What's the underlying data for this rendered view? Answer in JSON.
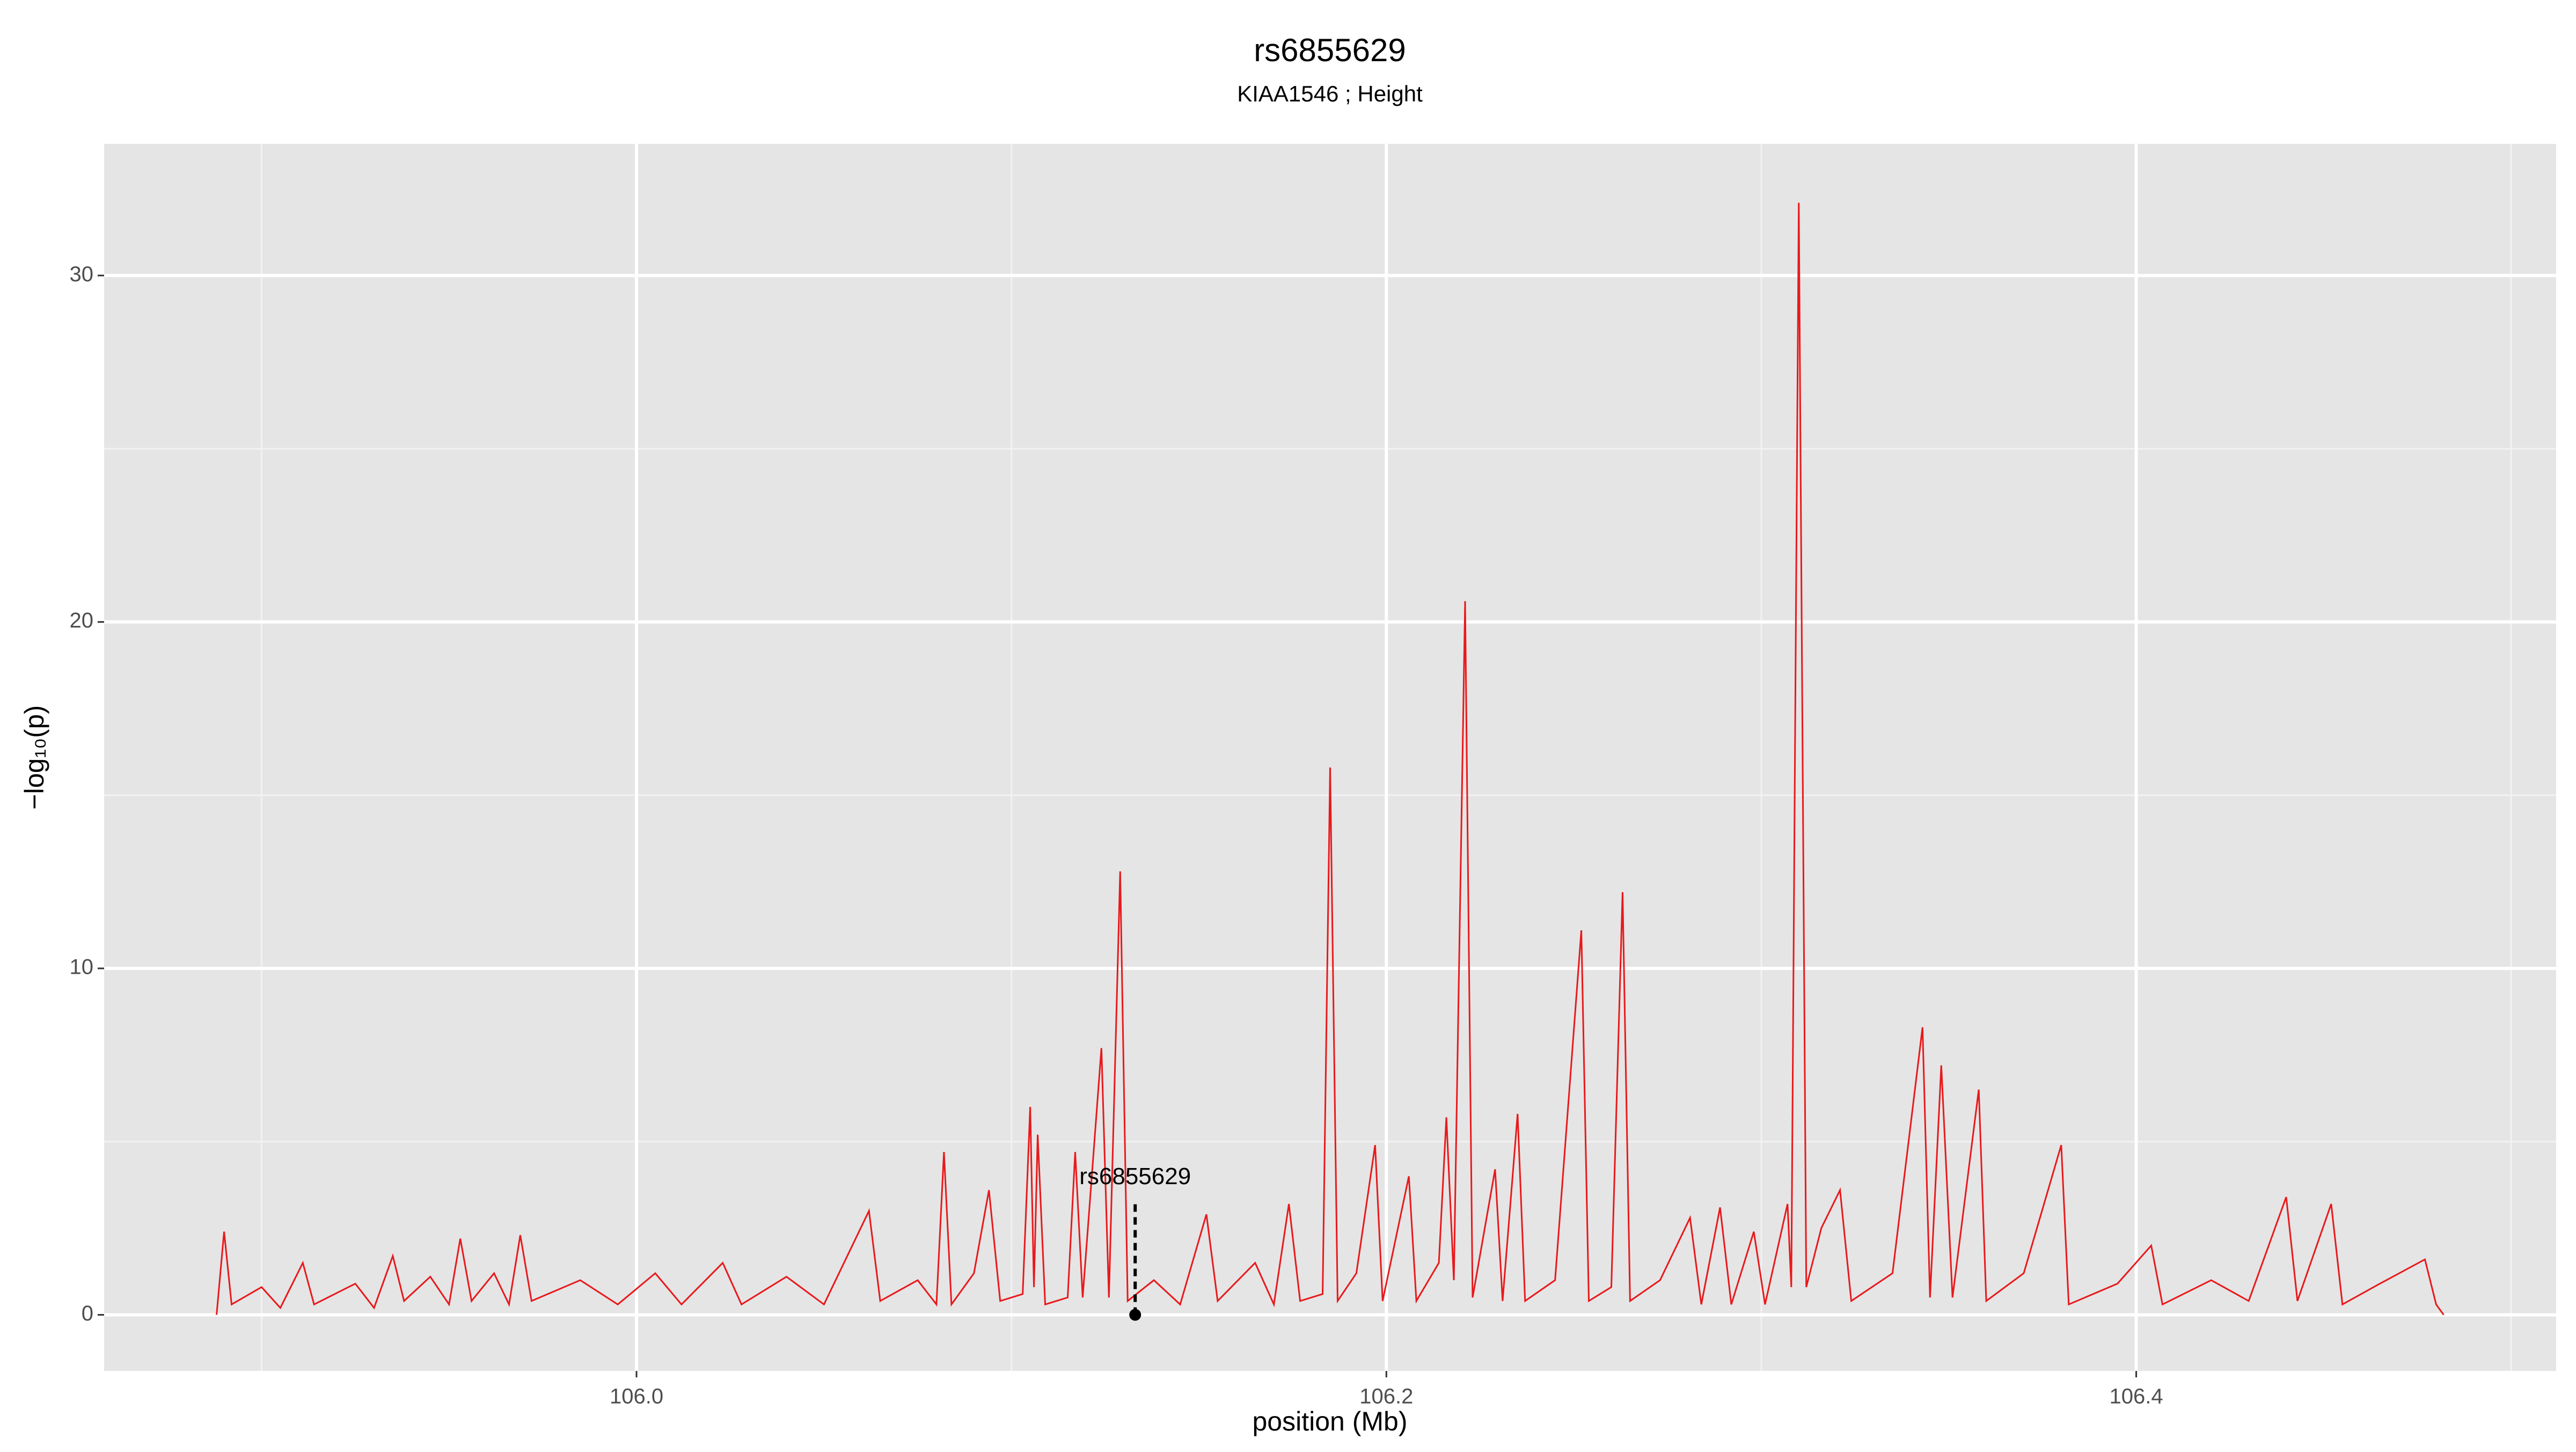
{
  "chart_data": {
    "type": "line",
    "title": "rs6855629",
    "subtitle": "KIAA1546 ; Height",
    "x_label": "position (Mb)",
    "y_label": "−log₁₀(p)",
    "color": "#e8191c",
    "grid": true,
    "xlim": [
      105.858,
      106.512
    ],
    "ylim": [
      -1.62,
      33.8
    ],
    "xticks": [
      {
        "value": 106,
        "label": "106.0"
      },
      {
        "value": 106.2,
        "label": "106.2"
      },
      {
        "value": 106.4,
        "label": "106.4"
      }
    ],
    "yticks": [
      0,
      10,
      20,
      30
    ],
    "annotation": {
      "label": "rs6855629",
      "x": 106.133,
      "y": 0
    },
    "x": [
      105.888,
      105.89,
      105.892,
      105.9,
      105.905,
      105.911,
      105.914,
      105.925,
      105.93,
      105.935,
      105.938,
      105.945,
      105.95,
      105.953,
      105.956,
      105.962,
      105.966,
      105.969,
      105.972,
      105.985,
      105.995,
      106.005,
      106.012,
      106.023,
      106.028,
      106.04,
      106.05,
      106.062,
      106.065,
      106.075,
      106.08,
      106.082,
      106.084,
      106.09,
      106.094,
      106.097,
      106.103,
      106.105,
      106.106,
      106.107,
      106.109,
      106.115,
      106.117,
      106.119,
      106.124,
      106.126,
      106.129,
      106.131,
      106.138,
      106.145,
      106.152,
      106.155,
      106.165,
      106.17,
      106.174,
      106.177,
      106.183,
      106.185,
      106.187,
      106.192,
      106.197,
      106.199,
      106.206,
      106.208,
      106.214,
      106.216,
      106.218,
      106.221,
      106.223,
      106.229,
      106.231,
      106.235,
      106.237,
      106.245,
      106.252,
      106.254,
      106.26,
      106.263,
      106.265,
      106.273,
      106.281,
      106.284,
      106.289,
      106.292,
      106.298,
      106.301,
      106.307,
      106.308,
      106.31,
      106.312,
      106.316,
      106.321,
      106.324,
      106.335,
      106.343,
      106.345,
      106.348,
      106.351,
      106.358,
      106.36,
      106.37,
      106.38,
      106.382,
      106.395,
      106.404,
      106.407,
      106.42,
      106.43,
      106.44,
      106.443,
      106.452,
      106.455,
      106.465,
      106.477,
      106.48,
      106.482
    ],
    "values": [
      0,
      2.4,
      0.3,
      0.8,
      0.2,
      1.5,
      0.3,
      0.9,
      0.2,
      1.7,
      0.4,
      1.1,
      0.3,
      2.2,
      0.4,
      1.2,
      0.3,
      2.3,
      0.4,
      1.0,
      0.3,
      1.2,
      0.3,
      1.5,
      0.3,
      1.1,
      0.3,
      3.0,
      0.4,
      1.0,
      0.3,
      4.7,
      0.3,
      1.2,
      3.6,
      0.4,
      0.6,
      6.0,
      0.8,
      5.2,
      0.3,
      0.5,
      4.7,
      0.5,
      7.7,
      0.5,
      12.8,
      0.4,
      1.0,
      0.3,
      2.9,
      0.4,
      1.5,
      0.3,
      3.2,
      0.4,
      0.6,
      15.8,
      0.4,
      1.2,
      4.9,
      0.4,
      4.0,
      0.4,
      1.5,
      5.7,
      1.0,
      20.6,
      0.5,
      4.2,
      0.4,
      5.8,
      0.4,
      1.0,
      11.1,
      0.4,
      0.8,
      12.2,
      0.4,
      1.0,
      2.8,
      0.3,
      3.1,
      0.3,
      2.4,
      0.3,
      3.2,
      0.8,
      32.1,
      0.8,
      2.5,
      3.6,
      0.4,
      1.2,
      8.3,
      0.5,
      7.2,
      0.5,
      6.5,
      0.4,
      1.2,
      4.9,
      0.3,
      0.9,
      2.0,
      0.3,
      1.0,
      0.4,
      3.4,
      0.4,
      3.2,
      0.3,
      0.9,
      1.6,
      0.3,
      0
    ]
  }
}
